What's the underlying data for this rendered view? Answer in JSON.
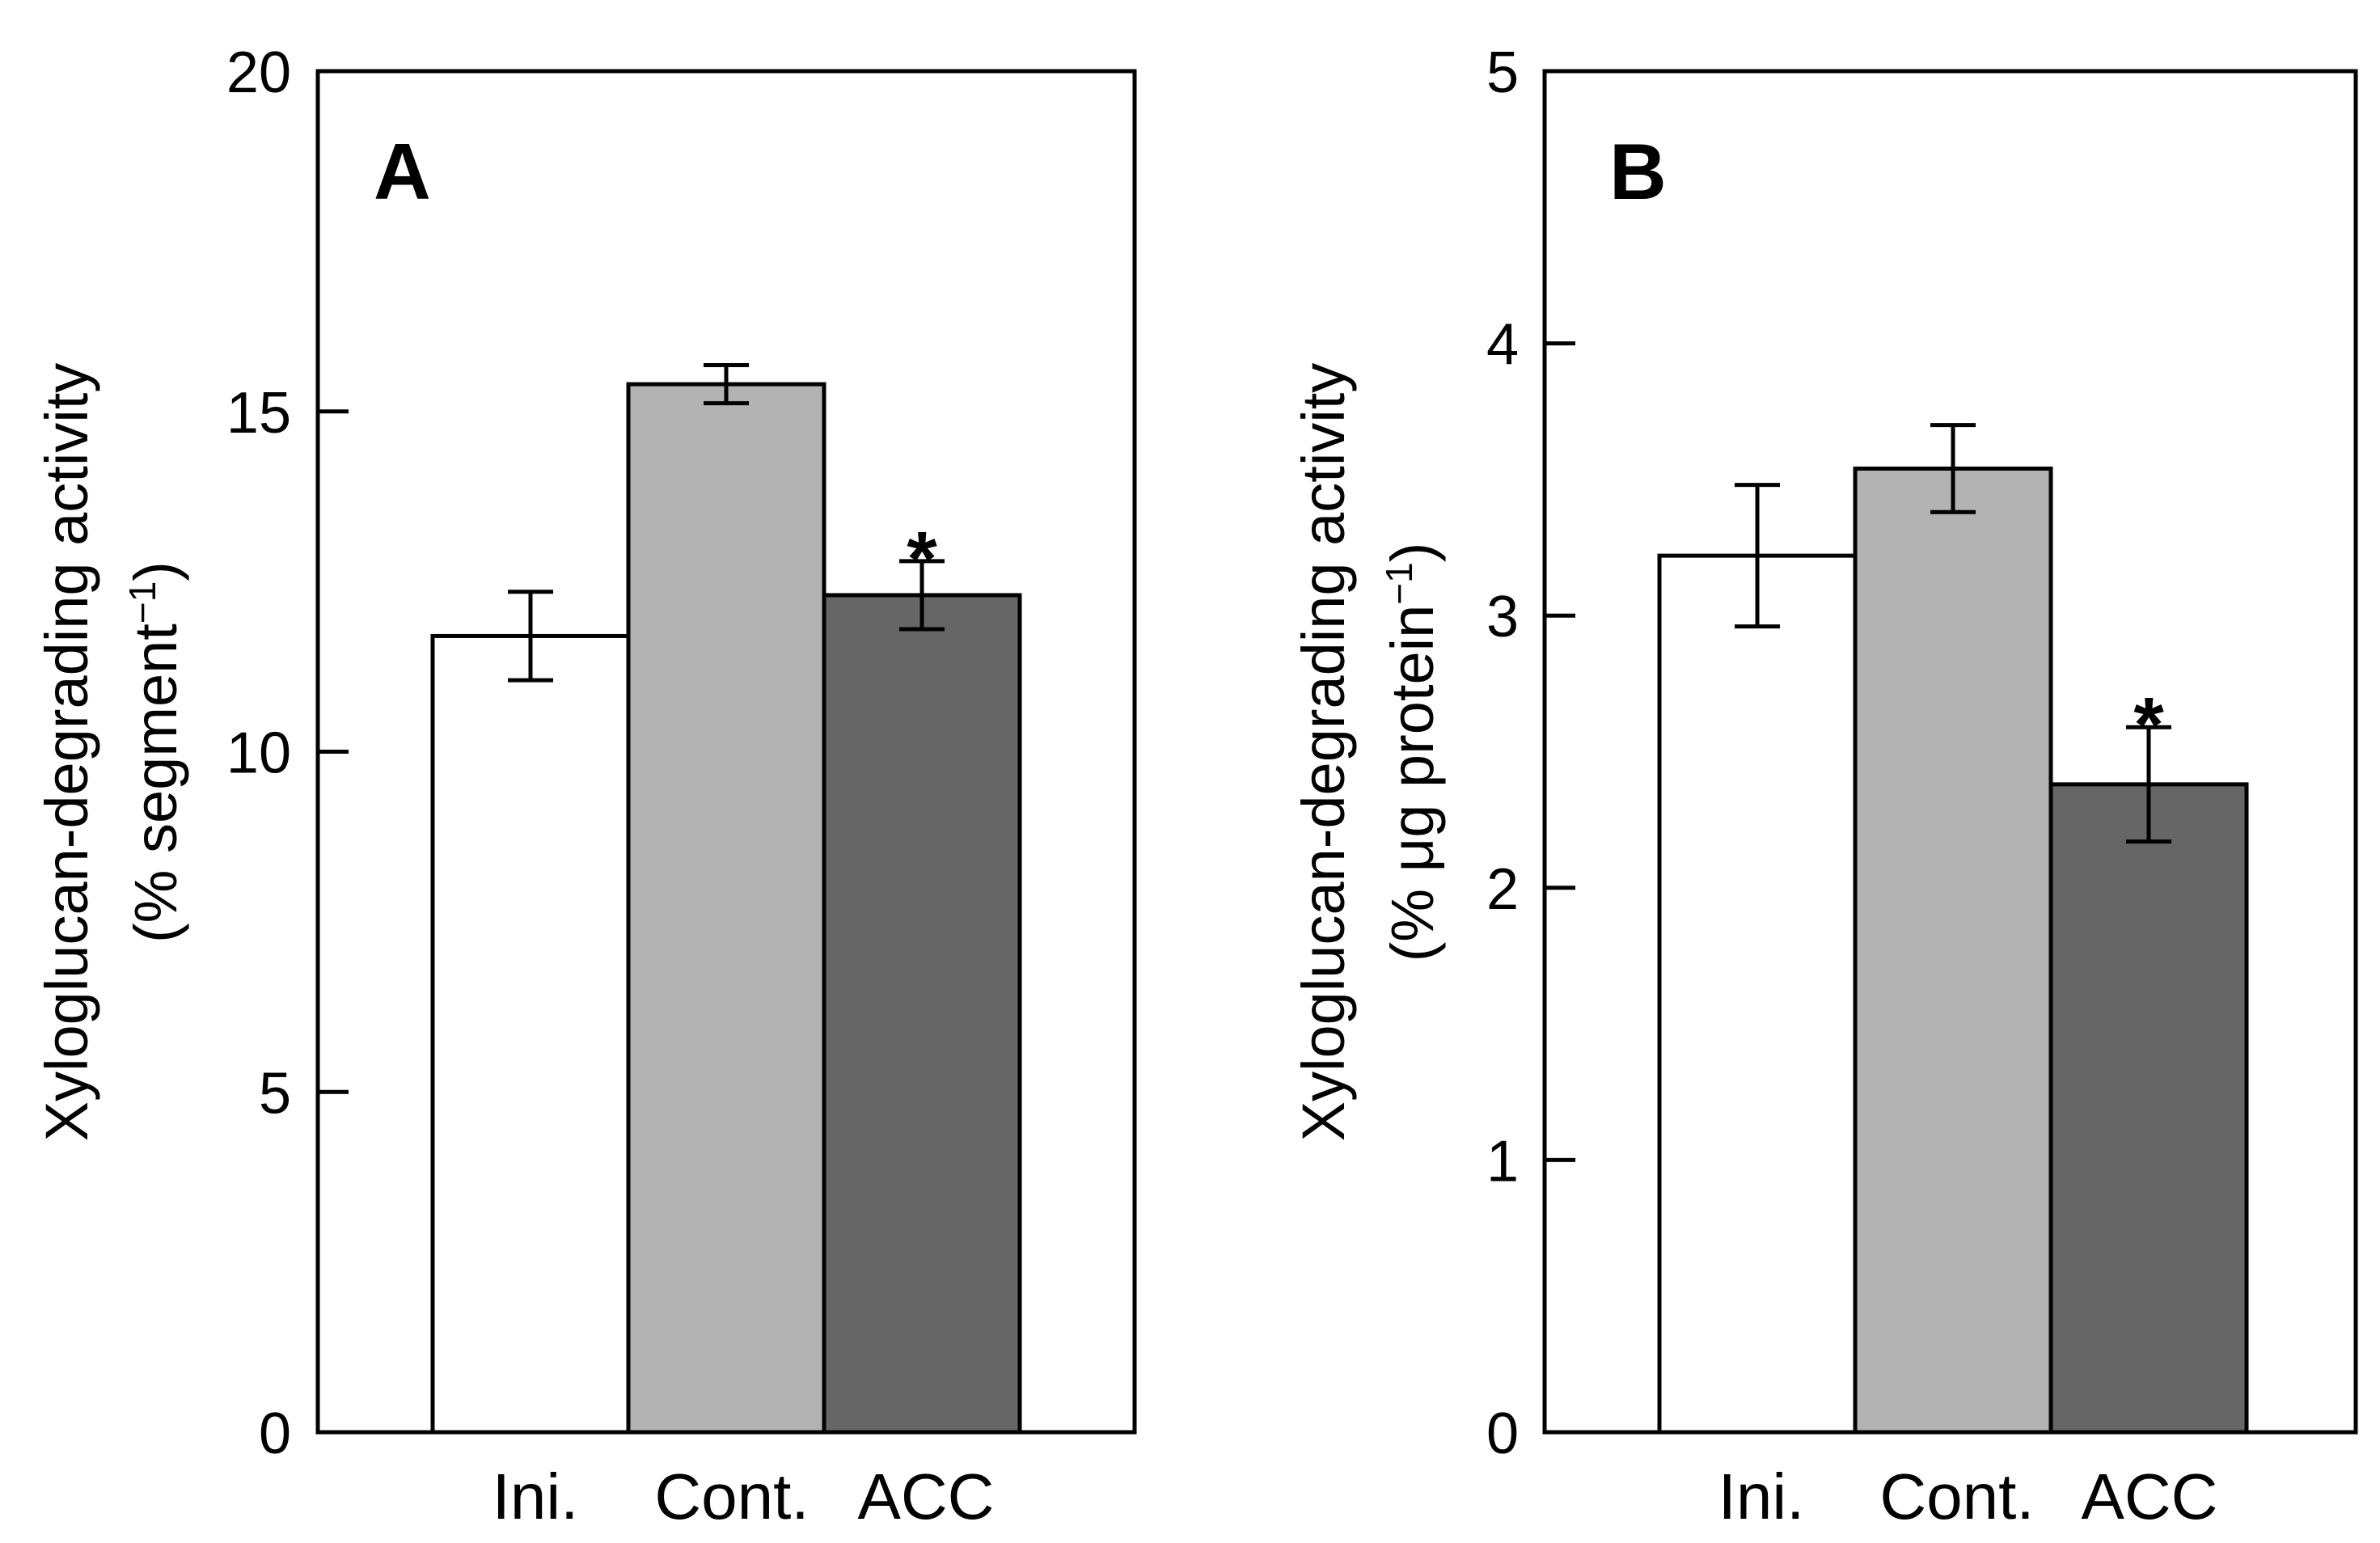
{
  "chart_data": [
    {
      "type": "bar",
      "panel": "A",
      "categories": [
        "Ini.",
        "Cont.",
        "ACC"
      ],
      "values": [
        11.7,
        15.4,
        12.3
      ],
      "errors": [
        0.65,
        0.28,
        0.5
      ],
      "colors": [
        "#ffffff",
        "#b3b3b3",
        "#666666"
      ],
      "significance": [
        "",
        "",
        "*"
      ],
      "ylabel": "Xyloglucan-degrading activity",
      "ylabel_unit": "(% segment",
      "ylabel_sup": "−1",
      "ylabel_close": ")",
      "ylim": [
        0,
        20
      ],
      "yticks": [
        0,
        5,
        10,
        15,
        20
      ],
      "grid": false
    },
    {
      "type": "bar",
      "panel": "B",
      "categories": [
        "Ini.",
        "Cont.",
        "ACC"
      ],
      "values": [
        3.22,
        3.54,
        2.38
      ],
      "errors": [
        0.26,
        0.16,
        0.21
      ],
      "colors": [
        "#ffffff",
        "#b3b3b3",
        "#666666"
      ],
      "significance": [
        "",
        "",
        "*"
      ],
      "ylabel": "Xyloglucan-degrading activity",
      "ylabel_unit": "(% μg protein",
      "ylabel_sup": "−1",
      "ylabel_close": ")",
      "ylim": [
        0,
        5
      ],
      "yticks": [
        0,
        1,
        2,
        3,
        4,
        5
      ],
      "grid": false
    }
  ]
}
